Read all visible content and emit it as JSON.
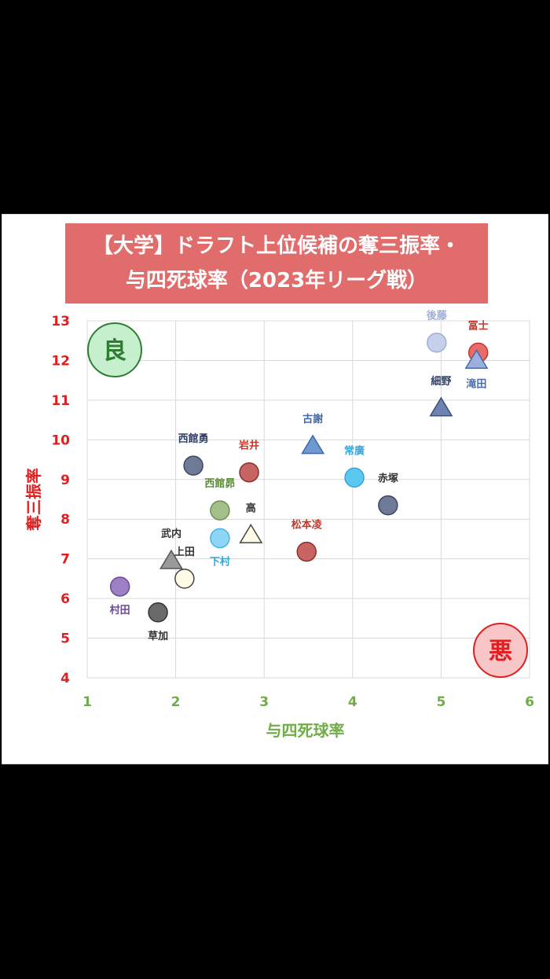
{
  "title": {
    "line1": "【大学】ドラフト上位候補の奪三振率・",
    "line2": "与四死球率（2023年リーグ戦）"
  },
  "badges": {
    "good": {
      "text": "良",
      "fill": "#c6efce",
      "stroke": "#2e7d32",
      "color": "#2e7d32"
    },
    "bad": {
      "text": "悪",
      "fill": "#f8c6c6",
      "stroke": "#e02020",
      "color": "#e02020"
    }
  },
  "chart_data": {
    "type": "scatter",
    "title": "【大学】ドラフト上位候補の奪三振率・与四死球率（2023年リーグ戦）",
    "xlabel": "与四死球率",
    "ylabel": "奪三振率",
    "xlim": [
      1,
      6
    ],
    "ylim": [
      4,
      13
    ],
    "xticks": [
      1,
      2,
      3,
      4,
      5,
      6
    ],
    "yticks": [
      4,
      5,
      6,
      7,
      8,
      9,
      10,
      11,
      12,
      13
    ],
    "grid": true,
    "points": [
      {
        "name": "後藤",
        "x": 4.95,
        "y": 12.45,
        "marker": "circle",
        "fill": "#c5d0ea",
        "stroke": "#9fb0d8",
        "label_color": "#9fb0d8",
        "label_pos": "above"
      },
      {
        "name": "冨士",
        "x": 5.42,
        "y": 12.2,
        "marker": "circle",
        "fill": "#e86a6a",
        "stroke": "#c0392b",
        "label_color": "#c0392b",
        "label_pos": "above"
      },
      {
        "name": "滝田",
        "x": 5.4,
        "y": 12.0,
        "marker": "triangle",
        "fill": "#9bb0dc",
        "stroke": "#4a6aa8",
        "label_color": "#4a6aa8",
        "label_pos": "below"
      },
      {
        "name": "細野",
        "x": 5.0,
        "y": 10.8,
        "marker": "triangle",
        "fill": "#6e84b0",
        "stroke": "#3a4e78",
        "label_color": "#2f3f66",
        "label_pos": "above"
      },
      {
        "name": "古謝",
        "x": 3.55,
        "y": 9.85,
        "marker": "triangle",
        "fill": "#6e98d0",
        "stroke": "#3c6aa8",
        "label_color": "#3c6aa8",
        "label_pos": "above"
      },
      {
        "name": "西館勇",
        "x": 2.2,
        "y": 9.35,
        "marker": "circle",
        "fill": "#6f7a96",
        "stroke": "#3e4763",
        "label_color": "#2f3f66",
        "label_pos": "above"
      },
      {
        "name": "岩井",
        "x": 2.83,
        "y": 9.18,
        "marker": "circle",
        "fill": "#c96464",
        "stroke": "#8e2d2d",
        "label_color": "#c0392b",
        "label_pos": "above"
      },
      {
        "name": "常廣",
        "x": 4.02,
        "y": 9.05,
        "marker": "circle",
        "fill": "#5cc8f0",
        "stroke": "#35a5d8",
        "label_color": "#35a5d8",
        "label_pos": "above"
      },
      {
        "name": "赤塚",
        "x": 4.4,
        "y": 8.35,
        "marker": "circle",
        "fill": "#6f7a96",
        "stroke": "#3e4763",
        "label_color": "#333333",
        "label_pos": "above"
      },
      {
        "name": "西館昴",
        "x": 2.5,
        "y": 8.22,
        "marker": "circle",
        "fill": "#a3c08a",
        "stroke": "#6a8f4d",
        "label_color": "#5b8a3a",
        "label_pos": "above"
      },
      {
        "name": "高",
        "x": 2.85,
        "y": 7.6,
        "marker": "triangle",
        "fill": "#fffbe6",
        "stroke": "#444444",
        "label_color": "#333333",
        "label_pos": "above"
      },
      {
        "name": "下村",
        "x": 2.5,
        "y": 7.52,
        "marker": "circle",
        "fill": "#8fd6f6",
        "stroke": "#45b4e6",
        "label_color": "#35a5d8",
        "label_pos": "below"
      },
      {
        "name": "松本凌",
        "x": 3.48,
        "y": 7.18,
        "marker": "circle",
        "fill": "#c96464",
        "stroke": "#8e2d2d",
        "label_color": "#c0392b",
        "label_pos": "above"
      },
      {
        "name": "武内",
        "x": 1.95,
        "y": 6.95,
        "marker": "triangle",
        "fill": "#9a9a9a",
        "stroke": "#555555",
        "label_color": "#333333",
        "label_pos": "above"
      },
      {
        "name": "上田",
        "x": 2.1,
        "y": 6.5,
        "marker": "circle",
        "fill": "#fffbe6",
        "stroke": "#444444",
        "label_color": "#333333",
        "label_pos": "above"
      },
      {
        "name": "村田",
        "x": 1.37,
        "y": 6.3,
        "marker": "circle",
        "fill": "#9c7fc4",
        "stroke": "#6a4b96",
        "label_color": "#6a4b96",
        "label_pos": "below"
      },
      {
        "name": "草加",
        "x": 1.8,
        "y": 5.65,
        "marker": "circle",
        "fill": "#6a6a6a",
        "stroke": "#333333",
        "label_color": "#333333",
        "label_pos": "below"
      }
    ]
  }
}
